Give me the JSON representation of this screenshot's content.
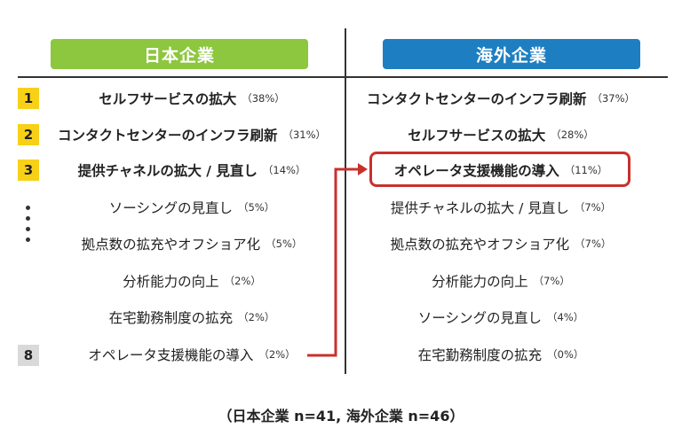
{
  "chart_data": {
    "type": "table",
    "columns": [
      {
        "title": "日本企業",
        "color": "#8dc63f",
        "items": [
          {
            "rank": "1",
            "label": "セルフサービスの拡大",
            "pct": "（38%）"
          },
          {
            "rank": "2",
            "label": "コンタクトセンターのインフラ刷新",
            "pct": "（31%）"
          },
          {
            "rank": "3",
            "label": "提供チャネルの拡大 / 見直し",
            "pct": "（14%）"
          },
          {
            "rank": "",
            "label": "ソーシングの見直し",
            "pct": "（5%）"
          },
          {
            "rank": "",
            "label": "拠点数の拡充やオフショア化",
            "pct": "（5%）"
          },
          {
            "rank": "",
            "label": "分析能力の向上",
            "pct": "（2%）"
          },
          {
            "rank": "",
            "label": "在宅勤務制度の拡充",
            "pct": "（2%）"
          },
          {
            "rank": "8",
            "label": "オペレータ支援機能の導入",
            "pct": "（2%）"
          }
        ]
      },
      {
        "title": "海外企業",
        "color": "#1d7fc1",
        "items": [
          {
            "label": "コンタクトセンターのインフラ刷新",
            "pct": "（37%）"
          },
          {
            "label": "セルフサービスの拡大",
            "pct": "（28%）"
          },
          {
            "label": "オペレータ支援機能の導入",
            "pct": "（11%）"
          },
          {
            "label": "提供チャネルの拡大 / 見直し",
            "pct": "（7%）"
          },
          {
            "label": "拠点数の拡充やオフショア化",
            "pct": "（7%）"
          },
          {
            "label": "分析能力の向上",
            "pct": "（7%）"
          },
          {
            "label": "ソーシングの見直し",
            "pct": "（4%）"
          },
          {
            "label": "在宅勤務制度の拡充",
            "pct": "（0%）"
          }
        ]
      }
    ],
    "highlight_color": "#c9302c",
    "footer": "（日本企業 n=41, 海外企業 n=46）"
  }
}
